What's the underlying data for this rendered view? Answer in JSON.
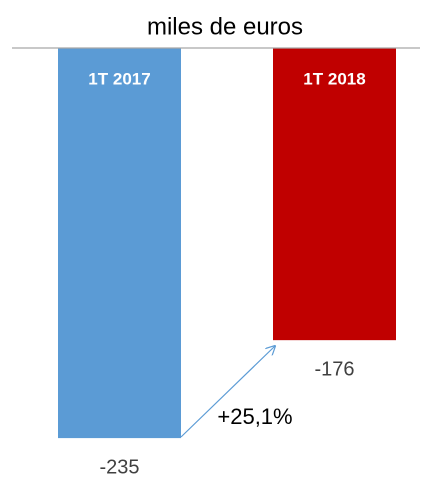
{
  "chart_data": {
    "type": "bar",
    "title": "miles de euros",
    "categories": [
      "1T 2017",
      "1T 2018"
    ],
    "values": [
      -235,
      -176
    ],
    "colors": [
      "#5b9bd5",
      "#c00000"
    ],
    "ylim": [
      -250,
      0
    ],
    "annotation": "+25,1%"
  }
}
